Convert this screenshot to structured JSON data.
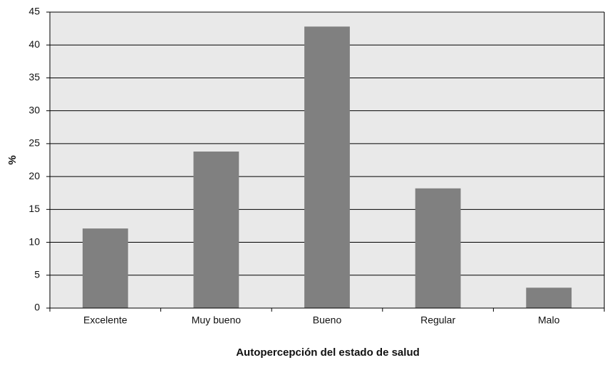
{
  "chart_data": {
    "type": "bar",
    "x_label": "Autopercepción del estado de salud",
    "y_label": "%",
    "categories": [
      "Excelente",
      "Muy bueno",
      "Bueno",
      "Regular",
      "Malo"
    ],
    "values": [
      12.1,
      23.8,
      42.8,
      18.2,
      3.1
    ],
    "color": "#808080",
    "ylim": [
      0,
      45
    ],
    "yticks": [
      0,
      5,
      10,
      15,
      20,
      25,
      30,
      35,
      40,
      45
    ],
    "grid": true
  }
}
